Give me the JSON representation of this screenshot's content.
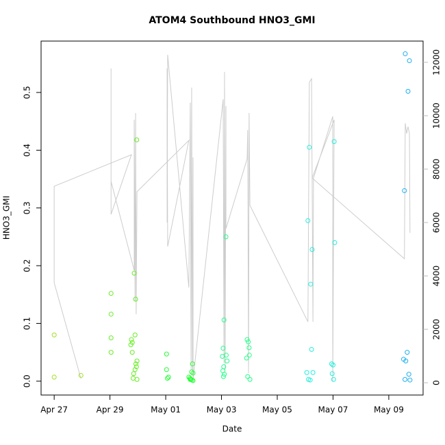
{
  "chart_data": {
    "type": "scatter",
    "title": "ATOM4 Southbound HNO3_GMI",
    "x_label": "Date",
    "y_label": "HNO3_GMI",
    "xlim": [
      116.53,
      130.23
    ],
    "xticks": [
      {
        "value": 117,
        "label": "Apr 27"
      },
      {
        "value": 119,
        "label": "Apr 29"
      },
      {
        "value": 121,
        "label": "May 01"
      },
      {
        "value": 123,
        "label": "May 03"
      },
      {
        "value": 125,
        "label": "May 05"
      },
      {
        "value": 127,
        "label": "May 07"
      },
      {
        "value": 129,
        "label": "May 09"
      }
    ],
    "ylim": [
      -0.024,
      0.589
    ],
    "yticks": [
      {
        "value": 0,
        "label": "0.0"
      },
      0.1,
      0.2,
      0.3,
      0.4,
      0.5
    ],
    "y2lim": [
      -460,
      12795
    ],
    "y2ticks": [
      0,
      2000,
      4000,
      6000,
      8000,
      10000,
      12000
    ],
    "y2_color": "#bbbbbb",
    "series": [
      {
        "color": "#a0e020",
        "x": [
          117.0,
          117.0,
          117.96
        ],
        "values": [
          0.08,
          0.007,
          0.01
        ]
      },
      {
        "color": "#66ee22",
        "x": [
          119.04,
          119.04,
          119.04,
          119.04,
          119.77,
          119.8,
          119.75,
          119.87,
          119.92,
          119.9,
          119.8,
          119.97,
          119.93,
          119.95,
          119.9,
          119.85,
          119.83,
          119.97,
          119.96
        ],
        "values": [
          0.152,
          0.116,
          0.075,
          0.05,
          0.072,
          0.067,
          0.063,
          0.187,
          0.142,
          0.08,
          0.05,
          0.035,
          0.03,
          0.025,
          0.02,
          0.013,
          0.005,
          0.003,
          0.418
        ]
      },
      {
        "color": "#22ff33",
        "x": [
          121.03,
          121.03,
          121.06,
          121.1,
          121.83,
          121.87,
          121.9,
          121.94,
          121.98,
          121.96,
          121.93,
          121.98,
          121.88
        ],
        "values": [
          0.047,
          0.02,
          0.005,
          0.007,
          0.007,
          0.005,
          0.003,
          0.002,
          0.001,
          0.03,
          0.016,
          0.014,
          0.003
        ]
      },
      {
        "color": "#22ff88",
        "x": [
          123.09,
          123.06,
          123.03,
          123.08,
          123.05,
          123.1,
          123.07,
          123.16,
          123.17,
          123.2,
          123.92,
          123.96,
          123.99,
          124.0,
          123.9,
          123.94,
          124.02
        ],
        "values": [
          0.106,
          0.057,
          0.043,
          0.025,
          0.018,
          0.012,
          0.008,
          0.25,
          0.045,
          0.035,
          0.072,
          0.068,
          0.058,
          0.045,
          0.04,
          0.008,
          0.003
        ]
      },
      {
        "color": "#22eedd",
        "x": [
          126.15,
          126.1,
          126.25,
          126.2,
          126.23,
          126.06,
          126.28,
          126.12,
          126.18,
          127.04,
          127.06,
          126.95,
          127.0,
          126.97,
          127.02
        ],
        "values": [
          0.405,
          0.278,
          0.228,
          0.168,
          0.055,
          0.015,
          0.015,
          0.003,
          0.002,
          0.415,
          0.24,
          0.03,
          0.028,
          0.013,
          0.003
        ]
      },
      {
        "color": "#1ab0f0",
        "x": [
          129.59,
          129.74,
          129.69,
          129.56,
          129.66,
          129.53,
          129.61,
          129.72,
          129.58,
          129.76
        ],
        "values": [
          0.567,
          0.555,
          0.502,
          0.33,
          0.05,
          0.038,
          0.035,
          0.012,
          0.003,
          0.002
        ]
      },
      {
        "type": "line",
        "axis": "y2",
        "color": "#cccccc",
        "x": [
          117.96,
          117.0,
          117.0,
          119.77,
          119.04,
          119.04,
          119.04,
          119.87,
          119.87,
          119.9,
          119.92,
          119.94,
          119.97,
          121.83,
          121.07,
          121.05,
          121.05,
          121.07,
          121.83,
          121.88,
          121.91,
          121.93,
          121.96,
          121.98,
          121.98,
          123.06,
          123.09,
          123.11,
          123.13,
          123.16,
          123.16,
          123.92,
          123.94,
          123.97,
          123.99,
          124.02,
          126.1,
          126.15,
          126.23,
          126.28,
          126.3,
          126.99,
          126.99,
          127.04,
          126.25,
          129.56,
          129.59,
          129.64,
          129.69,
          129.74,
          129.76
        ],
        "values": [
          154,
          3743,
          7359,
          8538,
          6307,
          11769,
          7538,
          4205,
          9846,
          3051,
          10102,
          2564,
          7154,
          9077,
          5102,
          11769,
          6000,
          12282,
          3564,
          10487,
          487,
          11051,
          359,
          8436,
          103,
          10615,
          744,
          11641,
          487,
          10359,
          5769,
          8385,
          9462,
          359,
          10102,
          6641,
          2282,
          11256,
          11385,
          2282,
          7667,
          9974,
          50,
          9846,
          7667,
          4641,
          9718,
          9333,
          9590,
          9333,
          5615
        ]
      }
    ]
  }
}
